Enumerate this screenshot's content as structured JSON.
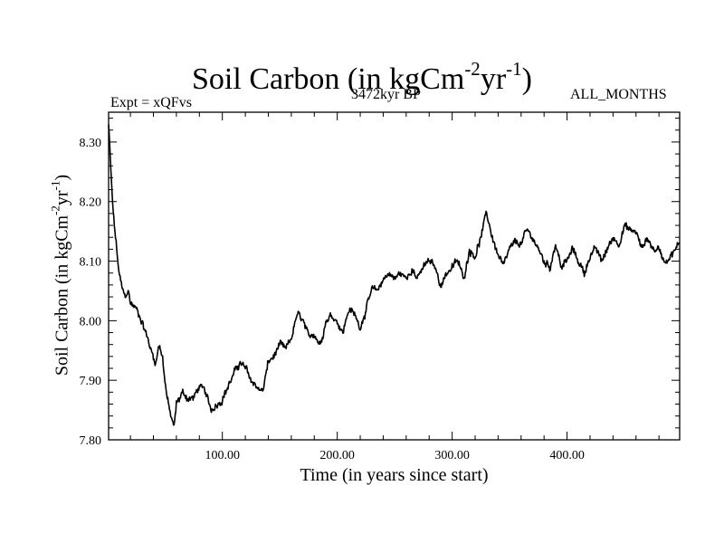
{
  "header": {
    "title_base": "Soil Carbon (in kgCm",
    "title_exp1": "-2",
    "title_mid": "yr",
    "title_exp2": "-1",
    "title_end": ")",
    "experiment": "Expt = xQFvs",
    "period": "3472kyr BP",
    "months": "ALL_MONTHS"
  },
  "chart_data": {
    "type": "line",
    "title": "Soil Carbon (in kgCm-2yr-1)",
    "xlabel": "Time (in years since start)",
    "ylabel": "Soil Carbon (in kgCm-2yr-1)",
    "xlim": [
      1,
      498
    ],
    "ylim": [
      7.8,
      8.35
    ],
    "x_ticks": [
      100,
      200,
      300,
      400
    ],
    "x_tick_labels": [
      "100.00",
      "200.00",
      "300.00",
      "400.00"
    ],
    "y_ticks": [
      7.8,
      7.9,
      8.0,
      8.1,
      8.2,
      8.3
    ],
    "y_tick_labels": [
      "7.80",
      "7.90",
      "8.00",
      "8.10",
      "8.20",
      "8.30"
    ],
    "series": [
      {
        "name": "Soil Carbon",
        "color": "#000000",
        "x": [
          1,
          3,
          5,
          8,
          10,
          12,
          15,
          18,
          20,
          25,
          30,
          35,
          38,
          42,
          45,
          48,
          50,
          52,
          55,
          58,
          60,
          63,
          65,
          70,
          75,
          80,
          85,
          90,
          95,
          100,
          105,
          110,
          115,
          120,
          125,
          130,
          135,
          140,
          145,
          150,
          155,
          160,
          165,
          170,
          175,
          180,
          185,
          190,
          195,
          200,
          205,
          210,
          215,
          220,
          225,
          230,
          235,
          240,
          245,
          250,
          255,
          260,
          265,
          270,
          275,
          280,
          285,
          290,
          295,
          300,
          305,
          310,
          315,
          320,
          325,
          330,
          335,
          340,
          345,
          350,
          355,
          360,
          365,
          370,
          375,
          380,
          385,
          390,
          395,
          400,
          405,
          410,
          415,
          420,
          425,
          430,
          435,
          440,
          445,
          450,
          455,
          460,
          465,
          470,
          475,
          480,
          485,
          490,
          495,
          498
        ],
        "values": [
          8.33,
          8.25,
          8.18,
          8.12,
          8.08,
          8.06,
          8.04,
          8.05,
          8.03,
          8.02,
          8.0,
          7.97,
          7.95,
          7.93,
          7.96,
          7.94,
          7.9,
          7.87,
          7.84,
          7.82,
          7.86,
          7.87,
          7.88,
          7.87,
          7.87,
          7.89,
          7.88,
          7.85,
          7.86,
          7.87,
          7.89,
          7.91,
          7.93,
          7.92,
          7.9,
          7.89,
          7.88,
          7.93,
          7.94,
          7.96,
          7.95,
          7.97,
          8.01,
          8.0,
          7.97,
          7.98,
          7.96,
          8.0,
          8.01,
          8.0,
          7.98,
          8.02,
          8.01,
          7.99,
          8.02,
          8.05,
          8.05,
          8.07,
          8.08,
          8.07,
          8.08,
          8.07,
          8.09,
          8.07,
          8.09,
          8.1,
          8.09,
          8.06,
          8.08,
          8.09,
          8.1,
          8.07,
          8.12,
          8.11,
          8.14,
          8.18,
          8.14,
          8.11,
          8.09,
          8.12,
          8.13,
          8.13,
          8.15,
          8.14,
          8.12,
          8.1,
          8.09,
          8.13,
          8.09,
          8.1,
          8.12,
          8.1,
          8.08,
          8.11,
          8.12,
          8.1,
          8.12,
          8.14,
          8.13,
          8.16,
          8.15,
          8.15,
          8.12,
          8.14,
          8.12,
          8.12,
          8.1,
          8.11,
          8.12,
          8.13
        ]
      }
    ]
  }
}
